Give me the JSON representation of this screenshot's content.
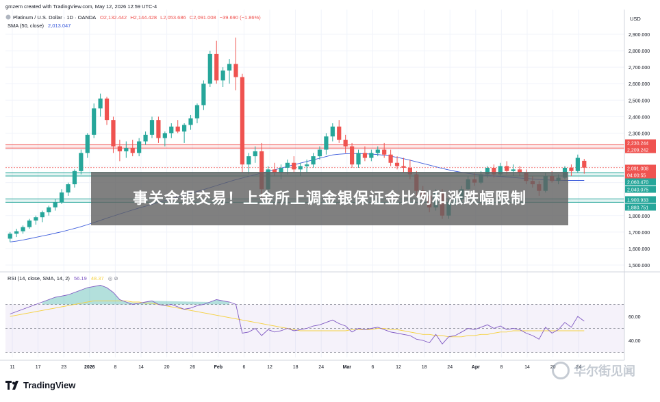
{
  "header": {
    "created": "gmzern created with TradingView.com, May 12, 2026 12:59 UTC-4",
    "symbol": "Platinum / U.S. Dollar · 1D · OANDA",
    "o": "O2,132.442",
    "h": "H2,144.428",
    "l": "L2,053.686",
    "c": "C2,091.008",
    "change": "−39.690 (−1.86%)",
    "sma_label": "SMA (50, close)",
    "sma_value": "2,013.047",
    "currency": "USD"
  },
  "rsi_header": {
    "label": "RSI (14, close, SMA, 14, 2)",
    "value1": "56.19",
    "value2": "48.37"
  },
  "banner": {
    "text": "事关金银交易！上金所上调金银保证金比例和涨跌幅限制"
  },
  "footer": {
    "brand": "TradingView",
    "watermark": "华尔街见闻"
  },
  "colors": {
    "up": "#26a69a",
    "down": "#ef5350",
    "sma": "#3b5bdb",
    "rsi": "#7e57c2",
    "rsi_ma": "#f5d142"
  },
  "price_axis": {
    "ticks": [
      "2,900.000",
      "2,800.000",
      "2,700.000",
      "2,600.000",
      "2,500.000",
      "2,400.000",
      "2,300.000",
      "2,200.000",
      "2,100.000",
      "2,000.000",
      "1,900.000",
      "1,800.000",
      "1,700.000",
      "1,600.000",
      "1,500.000"
    ],
    "labels": [
      {
        "text": "2,230.244",
        "color": "#ef5350"
      },
      {
        "text": "2,209.242",
        "color": "#ef5350"
      },
      {
        "text": "2,091.008",
        "color": "#ef5350"
      },
      {
        "text": "04:00:55",
        "color": "#ef5350"
      },
      {
        "text": "2,060.470",
        "color": "#26a69a"
      },
      {
        "text": "2,040.075",
        "color": "#26a69a"
      },
      {
        "text": "1,900.933",
        "color": "#26a69a"
      },
      {
        "text": "1,880.751",
        "color": "#26a69a"
      }
    ]
  },
  "rsi_axis": {
    "ticks": [
      "60.00",
      "40.00"
    ]
  },
  "time_axis": {
    "labels": [
      "11",
      "17",
      "23",
      "2026",
      "8",
      "14",
      "20",
      "26",
      "Feb",
      "6",
      "12",
      "18",
      "24",
      "Mar",
      "6",
      "12",
      "18",
      "24",
      "Apr",
      "8",
      "14",
      "20",
      "24"
    ]
  },
  "chart_data": {
    "type": "candlestick",
    "title": "Platinum / U.S. Dollar · 1D · OANDA",
    "ylim": [
      1500,
      2950
    ],
    "rsi_ylim": [
      25,
      95
    ],
    "candles": [
      [
        1660,
        1700,
        1640,
        1690
      ],
      [
        1690,
        1720,
        1670,
        1705
      ],
      [
        1705,
        1740,
        1690,
        1730
      ],
      [
        1730,
        1780,
        1720,
        1770
      ],
      [
        1770,
        1800,
        1745,
        1790
      ],
      [
        1790,
        1830,
        1760,
        1820
      ],
      [
        1820,
        1860,
        1800,
        1850
      ],
      [
        1850,
        1900,
        1830,
        1880
      ],
      [
        1880,
        1960,
        1870,
        1940
      ],
      [
        1940,
        2000,
        1920,
        1990
      ],
      [
        1990,
        2080,
        1970,
        2070
      ],
      [
        2070,
        2200,
        2050,
        2180
      ],
      [
        2180,
        2300,
        2150,
        2290
      ],
      [
        2290,
        2480,
        2270,
        2450
      ],
      [
        2450,
        2540,
        2400,
        2510
      ],
      [
        2510,
        2520,
        2350,
        2380
      ],
      [
        2380,
        2400,
        2180,
        2220
      ],
      [
        2220,
        2260,
        2130,
        2190
      ],
      [
        2190,
        2250,
        2150,
        2210
      ],
      [
        2210,
        2260,
        2160,
        2180
      ],
      [
        2180,
        2270,
        2160,
        2250
      ],
      [
        2250,
        2310,
        2230,
        2290
      ],
      [
        2290,
        2400,
        2270,
        2380
      ],
      [
        2380,
        2400,
        2240,
        2270
      ],
      [
        2270,
        2310,
        2220,
        2300
      ],
      [
        2300,
        2360,
        2270,
        2340
      ],
      [
        2340,
        2380,
        2300,
        2310
      ],
      [
        2310,
        2360,
        2240,
        2350
      ],
      [
        2350,
        2410,
        2320,
        2390
      ],
      [
        2390,
        2480,
        2360,
        2470
      ],
      [
        2470,
        2620,
        2440,
        2600
      ],
      [
        2600,
        2800,
        2580,
        2780
      ],
      [
        2780,
        2860,
        2600,
        2620
      ],
      [
        2620,
        2700,
        2580,
        2680
      ],
      [
        2680,
        2750,
        2600,
        2720
      ],
      [
        2720,
        2880,
        2560,
        2640
      ],
      [
        2640,
        2660,
        2060,
        2110
      ],
      [
        2110,
        2180,
        2050,
        2160
      ],
      [
        2160,
        2220,
        2120,
        2190
      ],
      [
        2190,
        2240,
        1900,
        1960
      ],
      [
        1960,
        2100,
        1920,
        2080
      ],
      [
        2080,
        2120,
        2040,
        2060
      ],
      [
        2060,
        2110,
        2020,
        2090
      ],
      [
        2090,
        2140,
        2050,
        2120
      ],
      [
        2120,
        2160,
        2060,
        2080
      ],
      [
        2080,
        2120,
        2040,
        2100
      ],
      [
        2100,
        2140,
        2060,
        2110
      ],
      [
        2110,
        2180,
        2090,
        2160
      ],
      [
        2160,
        2220,
        2140,
        2200
      ],
      [
        2200,
        2300,
        2170,
        2280
      ],
      [
        2280,
        2360,
        2250,
        2340
      ],
      [
        2340,
        2380,
        2240,
        2260
      ],
      [
        2260,
        2290,
        2180,
        2220
      ],
      [
        2220,
        2240,
        2090,
        2110
      ],
      [
        2110,
        2200,
        2090,
        2180
      ],
      [
        2180,
        2220,
        2130,
        2150
      ],
      [
        2150,
        2200,
        2130,
        2180
      ],
      [
        2180,
        2220,
        2160,
        2200
      ],
      [
        2200,
        2240,
        2150,
        2170
      ],
      [
        2170,
        2200,
        2100,
        2120
      ],
      [
        2120,
        2160,
        2080,
        2100
      ],
      [
        2100,
        2150,
        2060,
        2090
      ],
      [
        2090,
        2140,
        2020,
        2050
      ],
      [
        2050,
        2070,
        1920,
        1950
      ],
      [
        1950,
        1980,
        1880,
        1920
      ],
      [
        1920,
        1940,
        1820,
        1850
      ],
      [
        1850,
        1960,
        1830,
        1940
      ],
      [
        1940,
        1960,
        1780,
        1800
      ],
      [
        1800,
        1900,
        1780,
        1880
      ],
      [
        1880,
        1920,
        1860,
        1900
      ],
      [
        1900,
        1980,
        1880,
        1960
      ],
      [
        1960,
        2040,
        1940,
        2020
      ],
      [
        2020,
        2060,
        1980,
        2000
      ],
      [
        2000,
        2070,
        1990,
        2050
      ],
      [
        2050,
        2100,
        2030,
        2090
      ],
      [
        2090,
        2110,
        2030,
        2050
      ],
      [
        2050,
        2120,
        2040,
        2100
      ],
      [
        2100,
        2130,
        2050,
        2070
      ],
      [
        2070,
        2110,
        2040,
        2080
      ],
      [
        2080,
        2100,
        2040,
        2060
      ],
      [
        2060,
        2080,
        1990,
        2010
      ],
      [
        2010,
        2040,
        1970,
        1990
      ],
      [
        1990,
        2010,
        1920,
        1950
      ],
      [
        1950,
        2060,
        1940,
        2040
      ],
      [
        2040,
        2070,
        2000,
        2010
      ],
      [
        2010,
        2050,
        1990,
        2030
      ],
      [
        2030,
        2100,
        2020,
        2090
      ],
      [
        2090,
        2110,
        2040,
        2070
      ],
      [
        2070,
        2170,
        2060,
        2150
      ],
      [
        2132,
        2144,
        2054,
        2091
      ]
    ],
    "sma": [
      1640,
      1645,
      1652,
      1660,
      1668,
      1676,
      1684,
      1693,
      1702,
      1712,
      1722,
      1733,
      1745,
      1758,
      1771,
      1784,
      1797,
      1810,
      1822,
      1834,
      1846,
      1857,
      1868,
      1880,
      1891,
      1902,
      1913,
      1924,
      1935,
      1946,
      1958,
      1970,
      1982,
      1994,
      2006,
      2018,
      2028,
      2038,
      2048,
      2058,
      2068,
      2078,
      2088,
      2098,
      2108,
      2118,
      2128,
      2138,
      2148,
      2158,
      2168,
      2172,
      2175,
      2176,
      2176,
      2175,
      2173,
      2170,
      2166,
      2160,
      2153,
      2145,
      2136,
      2126,
      2116,
      2106,
      2096,
      2086,
      2077,
      2069,
      2062,
      2056,
      2051,
      2047,
      2043,
      2040,
      2037,
      2034,
      2031,
      2028,
      2025,
      2022,
      2019,
      2017,
      2015,
      2014,
      2013,
      2013,
      2013,
      2013
    ],
    "rsi": [
      62,
      64,
      66,
      68,
      70,
      72,
      74,
      76,
      77,
      78,
      80,
      82,
      84,
      85,
      86,
      84,
      80,
      74,
      72,
      70,
      71,
      72,
      73,
      70,
      69,
      70,
      68,
      66,
      67,
      69,
      70,
      72,
      74,
      73,
      72,
      70,
      46,
      47,
      50,
      44,
      49,
      47,
      48,
      50,
      48,
      49,
      50,
      52,
      53,
      55,
      57,
      54,
      52,
      47,
      50,
      49,
      50,
      51,
      49,
      47,
      46,
      45,
      44,
      41,
      40,
      38,
      45,
      37,
      43,
      44,
      47,
      50,
      49,
      51,
      53,
      50,
      52,
      49,
      50,
      49,
      46,
      44,
      41,
      51,
      46,
      49,
      55,
      51,
      60,
      56
    ],
    "rsi_ma": [
      60,
      61,
      62,
      63,
      64,
      65,
      66,
      67,
      68,
      69,
      70,
      71,
      72,
      73,
      73,
      73,
      73,
      73,
      73,
      72,
      72,
      71,
      71,
      70,
      69,
      68,
      67,
      66,
      65,
      64,
      63,
      62,
      61,
      60,
      59,
      58,
      57,
      56,
      55,
      54,
      53,
      52,
      51,
      50,
      49,
      48,
      48,
      48,
      48,
      48,
      48,
      48,
      48,
      49,
      49,
      49,
      49,
      50,
      50,
      49,
      49,
      48,
      47,
      46,
      45,
      45,
      44,
      44,
      43,
      43,
      43,
      44,
      44,
      45,
      45,
      46,
      47,
      47,
      48,
      48,
      48,
      48,
      48,
      48,
      48,
      48,
      48,
      48,
      48,
      48
    ],
    "rsi_levels": [
      70,
      50,
      30
    ],
    "zones": [
      {
        "from": 2209.242,
        "to": 2230.244,
        "color": "#ef5350"
      },
      {
        "from": 2040.075,
        "to": 2060.47,
        "color": "#26a69a"
      },
      {
        "from": 1880.751,
        "to": 1900.933,
        "color": "#26a69a"
      }
    ]
  }
}
